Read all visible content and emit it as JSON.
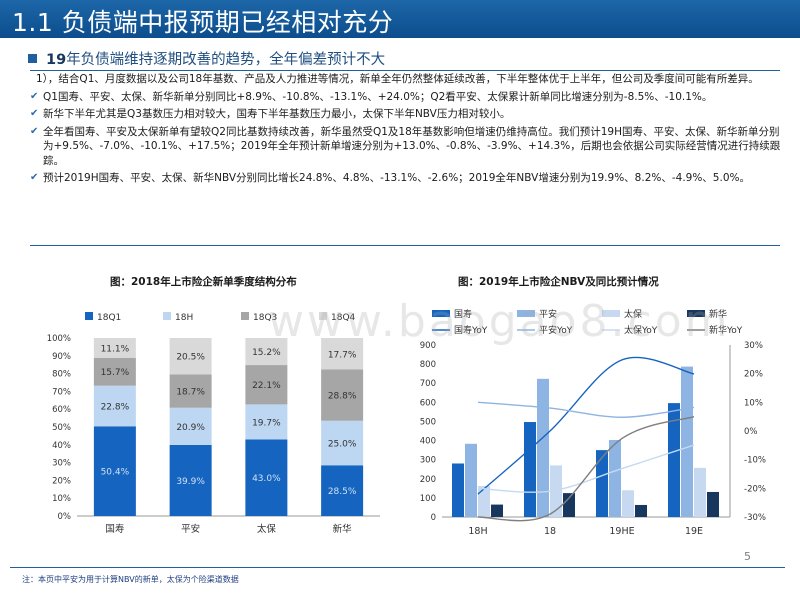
{
  "header": {
    "title": "1.1 负债端中报预期已经相对充分"
  },
  "section": {
    "title_bold": "19",
    "title_rest": "年负债端维持逐期改善的趋势，全年偏差预计不大"
  },
  "paragraphs": {
    "intro": "1），结合Q1、月度数据以及公司18年基数、产品及人力推进等情况，新单全年仍然整体延续改善，下半年整体优于上半年，但公司及季度间可能有所差异。",
    "p1": "Q1国寿、平安、太保、新华新单分别同比+8.9%、-10.8%、-13.1%、+24.0%；Q2看平安、太保累计新单同比增速分别为-8.5%、-10.1%。",
    "p2": "新华下半年尤其是Q3基数压力相对较大，国寿下半年基数压力最小，太保下半年NBV压力相对较小。",
    "p3": "全年看国寿、平安及太保新单有望较Q2同比基数持续改善，新华虽然受Q1及18年基数影响但增速仍维持高位。我们预计19H国寿、平安、太保、新华新单分别为+9.5%、-7.0%、-10.1%、+17.5%；2019年全年预计新单增速分别为+13.0%、-0.8%、-3.9%、+14.3%，后期也会依据公司实际经营情况进行持续跟踪。",
    "p4": "预计2019H国寿、平安、太保、新华NBV分别同比增长24.8%、4.8%、-13.1%、-2.6%；2019全年NBV增速分别为19.9%、8.2%、-4.9%、5.0%。"
  },
  "left_chart_title": "图：2018年上市险企新单季度结构分布",
  "right_chart_title": "图：2019年上市险企NBV及同比预计情况",
  "watermark": "www.baogao8.com",
  "page_number": "5",
  "footnote": "注：本页中平安为用于计算NBV的新单，太保为个险渠道数据",
  "chart_data": [
    {
      "type": "bar",
      "stacked": true,
      "categories": [
        "国寿",
        "平安",
        "太保",
        "新华"
      ],
      "series": [
        {
          "name": "18Q1",
          "values": [
            50.4,
            39.9,
            43.0,
            28.5
          ],
          "color": "#1565c0"
        },
        {
          "name": "18H",
          "values": [
            22.8,
            20.9,
            19.7,
            25.0
          ],
          "color": "#bdd7f2"
        },
        {
          "name": "18Q3",
          "values": [
            15.7,
            18.7,
            22.1,
            28.8
          ],
          "color": "#a6a6a6"
        },
        {
          "name": "18Q4",
          "values": [
            11.1,
            20.5,
            15.2,
            17.7
          ],
          "color": "#d9d9d9"
        }
      ],
      "ylim": [
        0,
        100
      ],
      "yticks": [
        "0%",
        "10%",
        "20%",
        "30%",
        "40%",
        "50%",
        "60%",
        "70%",
        "80%",
        "90%",
        "100%"
      ],
      "legend": "top"
    },
    {
      "type": "bar",
      "categories": [
        "18H",
        "18",
        "19HE",
        "19E"
      ],
      "series": [
        {
          "name": "国寿",
          "values": [
            280,
            497,
            350,
            596
          ],
          "color": "#1565c0"
        },
        {
          "name": "平安",
          "values": [
            383,
            723,
            403,
            787
          ],
          "color": "#8db4e2"
        },
        {
          "name": "太保",
          "values": [
            162,
            270,
            140,
            257
          ],
          "color": "#c6d9f0"
        },
        {
          "name": "新华",
          "values": [
            65,
            125,
            63,
            131
          ],
          "color": "#17375e"
        }
      ],
      "line_series": [
        {
          "name": "国寿YoY",
          "values": [
            -22,
            0,
            24.8,
            19.9
          ],
          "color": "#1565c0"
        },
        {
          "name": "平安YoY",
          "values": [
            10,
            8,
            4.8,
            8.2
          ],
          "color": "#8db4e2"
        },
        {
          "name": "太保YoY",
          "values": [
            -20,
            -21,
            -13.1,
            -4.9
          ],
          "color": "#c6d9f0"
        },
        {
          "name": "新华YoY",
          "values": [
            -30,
            -29,
            -2.6,
            5.0
          ],
          "color": "#7f7f7f"
        }
      ],
      "ylim": [
        0,
        900
      ],
      "yticks": [
        0,
        100,
        200,
        300,
        400,
        500,
        600,
        700,
        800,
        900
      ],
      "y2lim": [
        -30,
        30
      ],
      "y2ticks": [
        "-30%",
        "-20%",
        "-10%",
        "0%",
        "10%",
        "20%",
        "30%"
      ],
      "legend": "top"
    }
  ]
}
